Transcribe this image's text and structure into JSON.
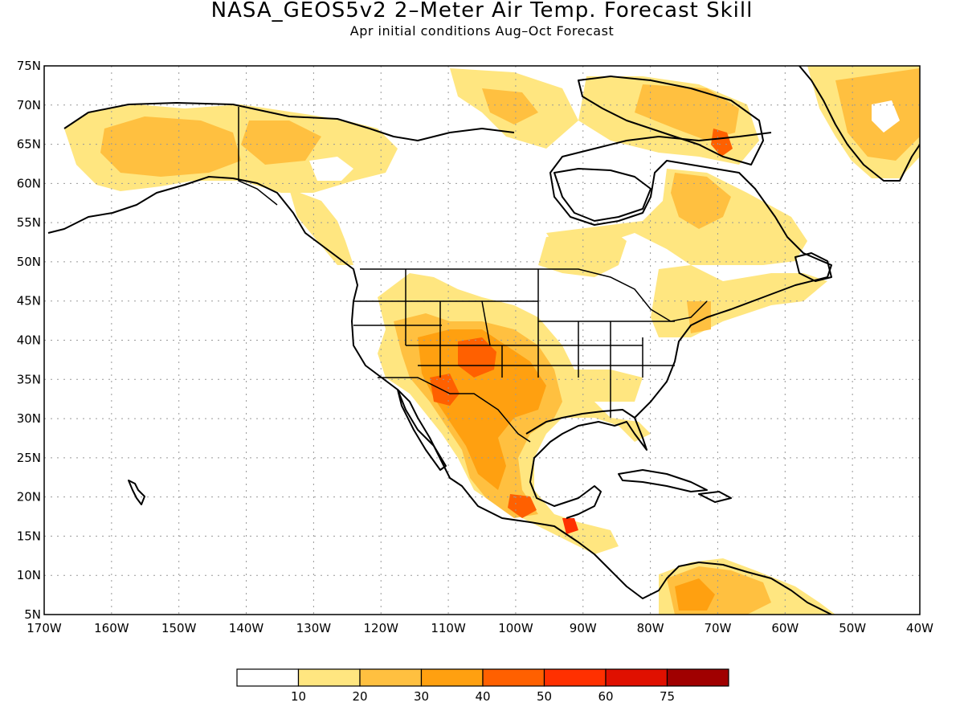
{
  "title": "NASA_GEOS5v2 2–Meter Air Temp. Forecast Skill",
  "subtitle": "Apr initial conditions  Aug–Oct Forecast",
  "map": {
    "lon_range": [
      -170,
      -40
    ],
    "lat_range": [
      5,
      75
    ],
    "lat_ticks": [
      "75N",
      "70N",
      "65N",
      "60N",
      "55N",
      "50N",
      "45N",
      "40N",
      "35N",
      "30N",
      "25N",
      "20N",
      "15N",
      "10N",
      "5N"
    ],
    "lon_ticks": [
      "170W",
      "160W",
      "150W",
      "140W",
      "130W",
      "120W",
      "110W",
      "100W",
      "90W",
      "80W",
      "70W",
      "60W",
      "50W",
      "40W"
    ]
  },
  "legend": {
    "labels": [
      "10",
      "20",
      "30",
      "40",
      "50",
      "60",
      "75"
    ],
    "colors": [
      "#ffffff",
      "#ffe680",
      "#ffc040",
      "#ffa010",
      "#ff6000",
      "#ff3000",
      "#e01000",
      "#a00000"
    ]
  }
}
